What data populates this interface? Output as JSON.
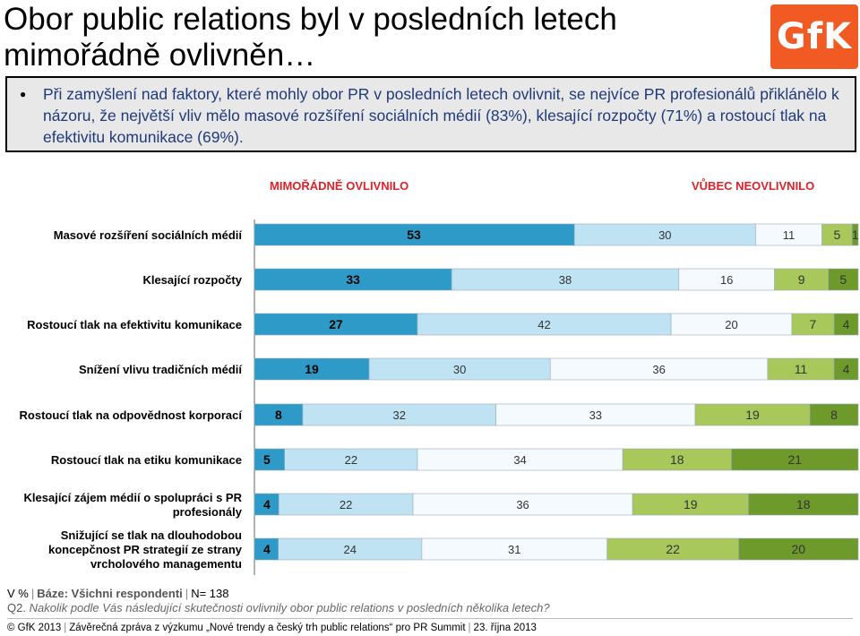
{
  "title_line1": "Obor public relations byl v posledních letech",
  "title_line2": "mimořádně ovlivněn…",
  "logo_text": "GfK",
  "callout_text": "Při zamyšlení nad faktory, které mohly obor PR v posledních letech ovlivnit, se nejvíce PR profesionálů přiklánělo k názoru, že největší vliv mělo masové rozšíření sociálních médií (83%), klesající rozpočty (71%) a rostoucí tlak na efektivitu komunikace (69%).",
  "footer": {
    "v_pct": "V %",
    "baze_label": "Báze:",
    "baze_value": "Všichni respondenti",
    "n": "N= 138",
    "q_label": "Q2.",
    "q_text": "Nakolik podle Vás následující skutečnosti ovlivnily obor public relations v posledních několika letech?",
    "copyright": "© GfK 2013",
    "report": "Závěrečná zpráva z výzkumu „Nové trendy a český trh public relations“ pro PR Summit",
    "date": "23. října 2013"
  },
  "colors": {
    "s1": "#2e9ac7",
    "s2": "#bfe3f3",
    "s3": "#f4fafd",
    "s4": "#a8c85c",
    "s5": "#6e9a2c",
    "header_red": "#e0212a",
    "callout_text": "#1f3a7a"
  },
  "chart_data": {
    "type": "bar",
    "orientation": "horizontal",
    "stacked": true,
    "header_left": "MIMOŘÁDNĚ OVLIVNILO",
    "header_right": "VŮBEC NEOVLIVNILO",
    "categories": [
      "Masové rozšíření sociálních médií",
      "Klesající rozpočty",
      "Rostoucí tlak na efektivitu komunikace",
      "Snížení vlivu tradičních médií",
      "Rostoucí tlak na odpovědnost korporací",
      "Rostoucí tlak na etiku komunikace",
      "Klesající zájem médií o spolupráci s PR profesionály",
      "Snižující se tlak na dlouhodobou koncepčnost PR strategií ze strany vrcholového managementu"
    ],
    "values": [
      [
        53,
        30,
        11,
        5,
        1
      ],
      [
        33,
        38,
        16,
        9,
        5
      ],
      [
        27,
        42,
        20,
        7,
        4
      ],
      [
        19,
        30,
        36,
        11,
        4
      ],
      [
        8,
        32,
        33,
        19,
        8
      ],
      [
        5,
        22,
        34,
        18,
        21
      ],
      [
        4,
        22,
        36,
        19,
        18
      ],
      [
        4,
        24,
        31,
        22,
        20
      ]
    ],
    "xlim": [
      0,
      100
    ]
  }
}
